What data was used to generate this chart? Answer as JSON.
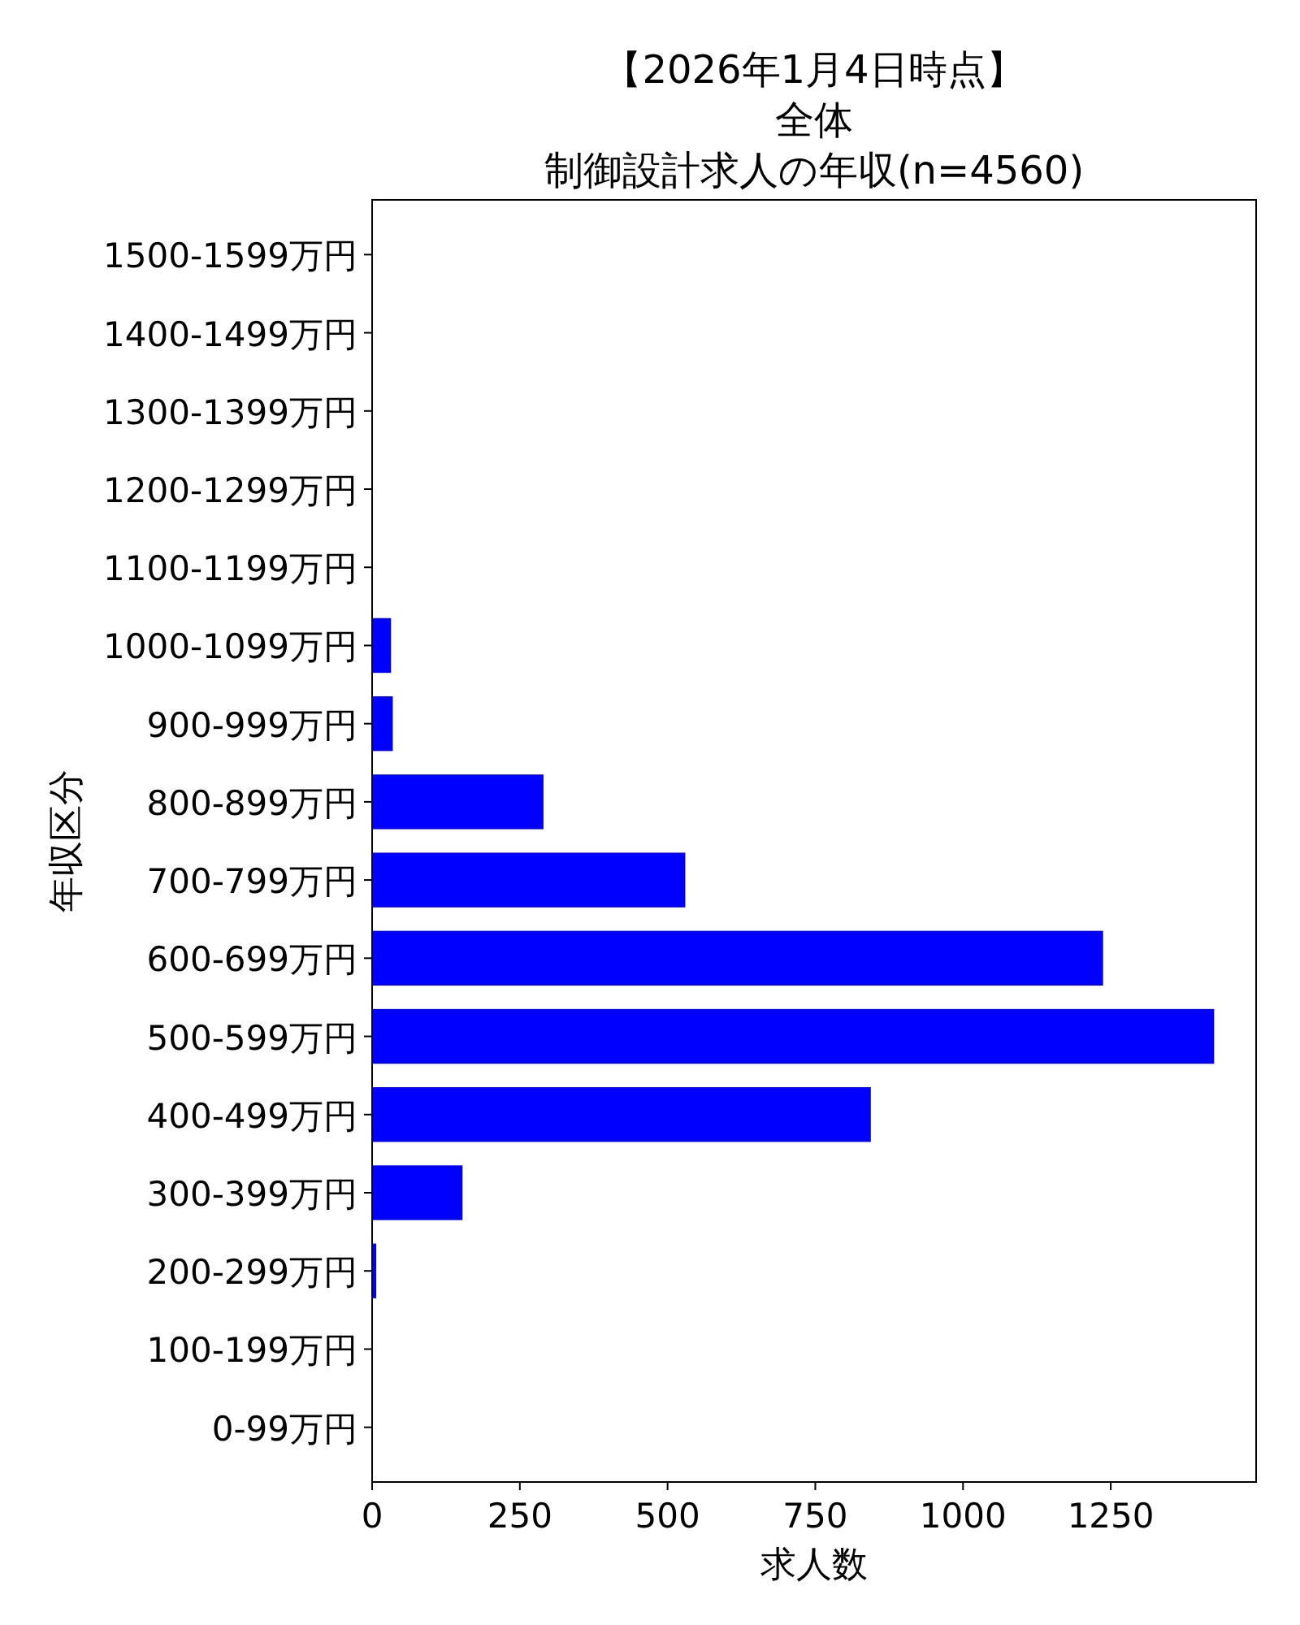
{
  "chart_data": {
    "type": "bar",
    "orientation": "horizontal",
    "title": "【2026年1月4日時点】",
    "subtitle": "全体",
    "annotations": [
      "制御設計求人の年収(n=4560)"
    ],
    "xlabel": "求人数",
    "ylabel": "年収区分",
    "categories": [
      "1500-1599万円",
      "1400-1499万円",
      "1300-1399万円",
      "1200-1299万円",
      "1100-1199万円",
      "1000-1099万円",
      "900-999万円",
      "800-899万円",
      "700-799万円",
      "600-699万円",
      "500-599万円",
      "400-499万円",
      "300-399万円",
      "200-299万円",
      "100-199万円",
      "0-99万円"
    ],
    "values": [
      0,
      0,
      0,
      0,
      0,
      32,
      35,
      290,
      530,
      1237,
      1425,
      844,
      153,
      7,
      0,
      0
    ],
    "color": "#0000ff",
    "xlim": [
      0,
      1496
    ],
    "xticks": [
      0,
      250,
      500,
      750,
      1000,
      1250
    ],
    "grid": false
  }
}
